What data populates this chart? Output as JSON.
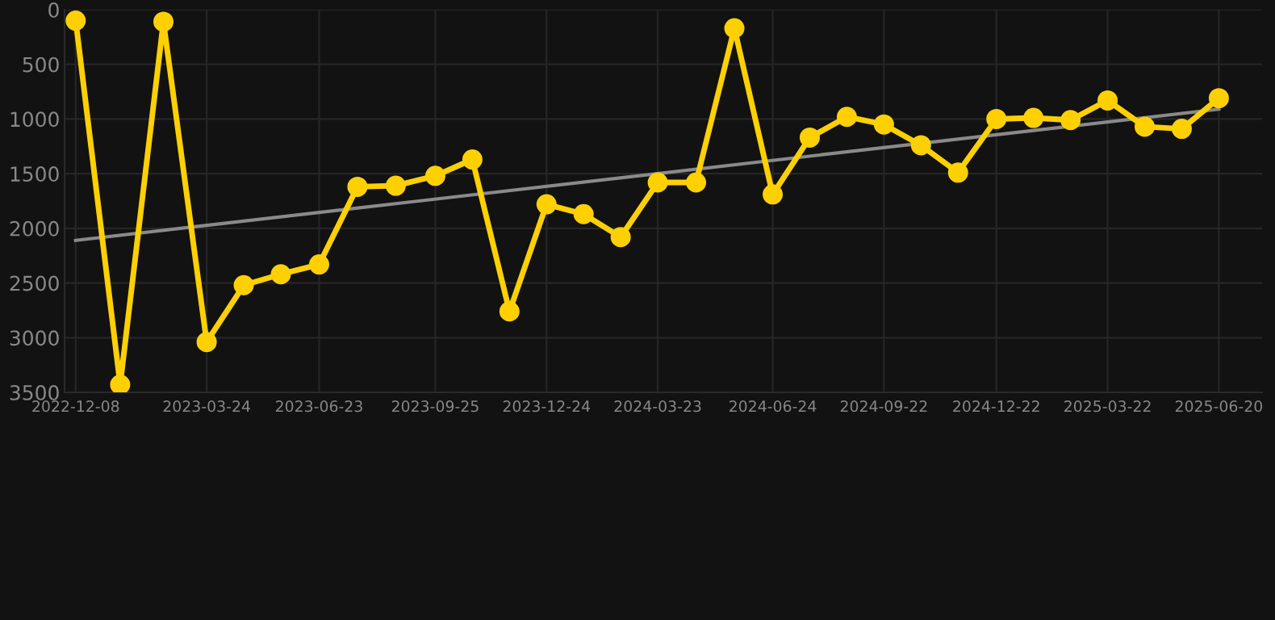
{
  "chart_data": {
    "type": "line",
    "x": [
      "2022-12-08",
      "2023-01-13",
      "2023-02-17",
      "2023-03-24",
      "2023-04-23",
      "2023-05-23",
      "2023-06-23",
      "2023-07-24",
      "2023-08-24",
      "2023-09-25",
      "2023-10-25",
      "2023-11-24",
      "2023-12-24",
      "2024-01-23",
      "2024-02-22",
      "2024-03-23",
      "2024-04-23",
      "2024-05-24",
      "2024-06-24",
      "2024-07-24",
      "2024-08-23",
      "2024-09-22",
      "2024-10-22",
      "2024-11-21",
      "2024-12-22",
      "2025-01-21",
      "2025-02-20",
      "2025-03-22",
      "2025-04-21",
      "2025-05-21",
      "2025-06-20"
    ],
    "series": [
      {
        "color": "#ffd000",
        "marker": "circle",
        "values": [
          100,
          3430,
          110,
          3040,
          2520,
          2420,
          2330,
          1620,
          1610,
          1520,
          1370,
          2760,
          1780,
          1870,
          2080,
          1580,
          1580,
          170,
          1690,
          1170,
          980,
          1050,
          1240,
          1490,
          1000,
          990,
          1010,
          830,
          1070,
          1090,
          810
        ]
      },
      {
        "type": "line",
        "color": "#8a8a8a",
        "marker": "none",
        "x": [
          "2022-12-08",
          "2025-06-20"
        ],
        "values": [
          2110,
          910
        ]
      }
    ],
    "xlim": [
      "2022-11-29",
      "2025-07-25"
    ],
    "xticks": [
      "2022-12-08",
      "2023-03-24",
      "2023-06-23",
      "2023-09-25",
      "2023-12-24",
      "2024-03-23",
      "2024-06-24",
      "2024-09-22",
      "2024-12-22",
      "2025-03-22",
      "2025-06-20"
    ],
    "ylim": [
      3500,
      0
    ],
    "yticks": [
      0,
      500,
      1000,
      1500,
      2000,
      2500,
      3000,
      3500
    ],
    "grid": true,
    "line_style": "solid"
  }
}
